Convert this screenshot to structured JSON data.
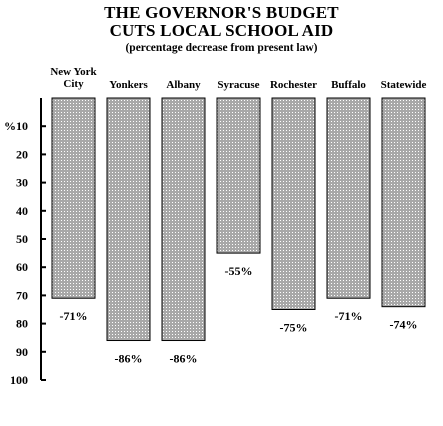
{
  "chart_data": {
    "type": "bar",
    "title_lines": [
      "THE GOVERNOR'S BUDGET",
      "CUTS LOCAL SCHOOL AID"
    ],
    "subtitle": "(percentage decrease from present law)",
    "axis_unit_label": "%",
    "ylim": [
      0,
      100
    ],
    "y_ticks": [
      "10",
      "20",
      "30",
      "40",
      "50",
      "60",
      "70",
      "80",
      "90",
      "100"
    ],
    "y_inverted": true,
    "grid": false,
    "categories": [
      [
        "New York",
        "City"
      ],
      [
        "Yonkers"
      ],
      [
        "Albany"
      ],
      [
        "Syracuse"
      ],
      [
        "Rochester"
      ],
      [
        "Buffalo"
      ],
      [
        "Statewide"
      ]
    ],
    "values": [
      71,
      86,
      86,
      55,
      75,
      71,
      74
    ],
    "data_labels": [
      "-71%",
      "-86%",
      "-86%",
      "-55%",
      "-75%",
      "-71%",
      "-74%"
    ],
    "bar_pattern": "stippled gray",
    "colors": {
      "bar_fill": "#a8a8a8",
      "bar_stroke": "#000000",
      "dot": "#ffffff"
    }
  }
}
